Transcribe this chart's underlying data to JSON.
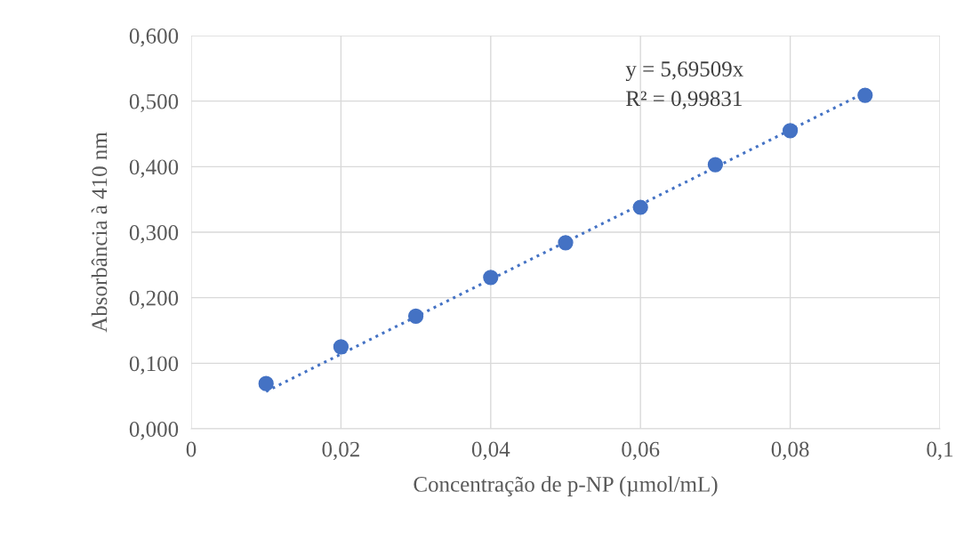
{
  "chart_data": {
    "type": "scatter",
    "xlabel": "Concentração de p-NP (µmol/mL)",
    "ylabel": "Absorbância à 410 nm",
    "annotations": [
      "y = 5,69509x",
      "R² = 0,99831"
    ],
    "x": [
      0.01,
      0.02,
      0.03,
      0.04,
      0.05,
      0.06,
      0.07,
      0.08,
      0.09
    ],
    "series": [
      {
        "color": "#4472c4",
        "marker": "circle",
        "values": [
          0.069,
          0.125,
          0.172,
          0.231,
          0.284,
          0.338,
          0.403,
          0.455,
          0.509
        ]
      },
      {
        "type": "line",
        "color": "#4472c4",
        "line_style": "dotted",
        "marker": "none",
        "x": [
          0.01,
          0.09
        ],
        "values": [
          0.057,
          0.513
        ]
      }
    ],
    "xlim": [
      0,
      0.1
    ],
    "xticks": [
      0,
      {
        "value": 0.02,
        "label": "0,02"
      },
      {
        "value": 0.04,
        "label": "0,04"
      },
      {
        "value": 0.06,
        "label": "0,06"
      },
      {
        "value": 0.08,
        "label": "0,08"
      },
      {
        "value": 0.1,
        "label": "0,1"
      }
    ],
    "ylim": [
      0,
      0.6
    ],
    "yticks": [
      {
        "value": 0,
        "label": "0,000"
      },
      {
        "value": 0.1,
        "label": "0,100"
      },
      {
        "value": 0.2,
        "label": "0,200"
      },
      {
        "value": 0.3,
        "label": "0,300"
      },
      {
        "value": 0.4,
        "label": "0,400"
      },
      {
        "value": 0.5,
        "label": "0,500"
      },
      {
        "value": 0.6,
        "label": "0,600"
      }
    ],
    "grid": true
  }
}
